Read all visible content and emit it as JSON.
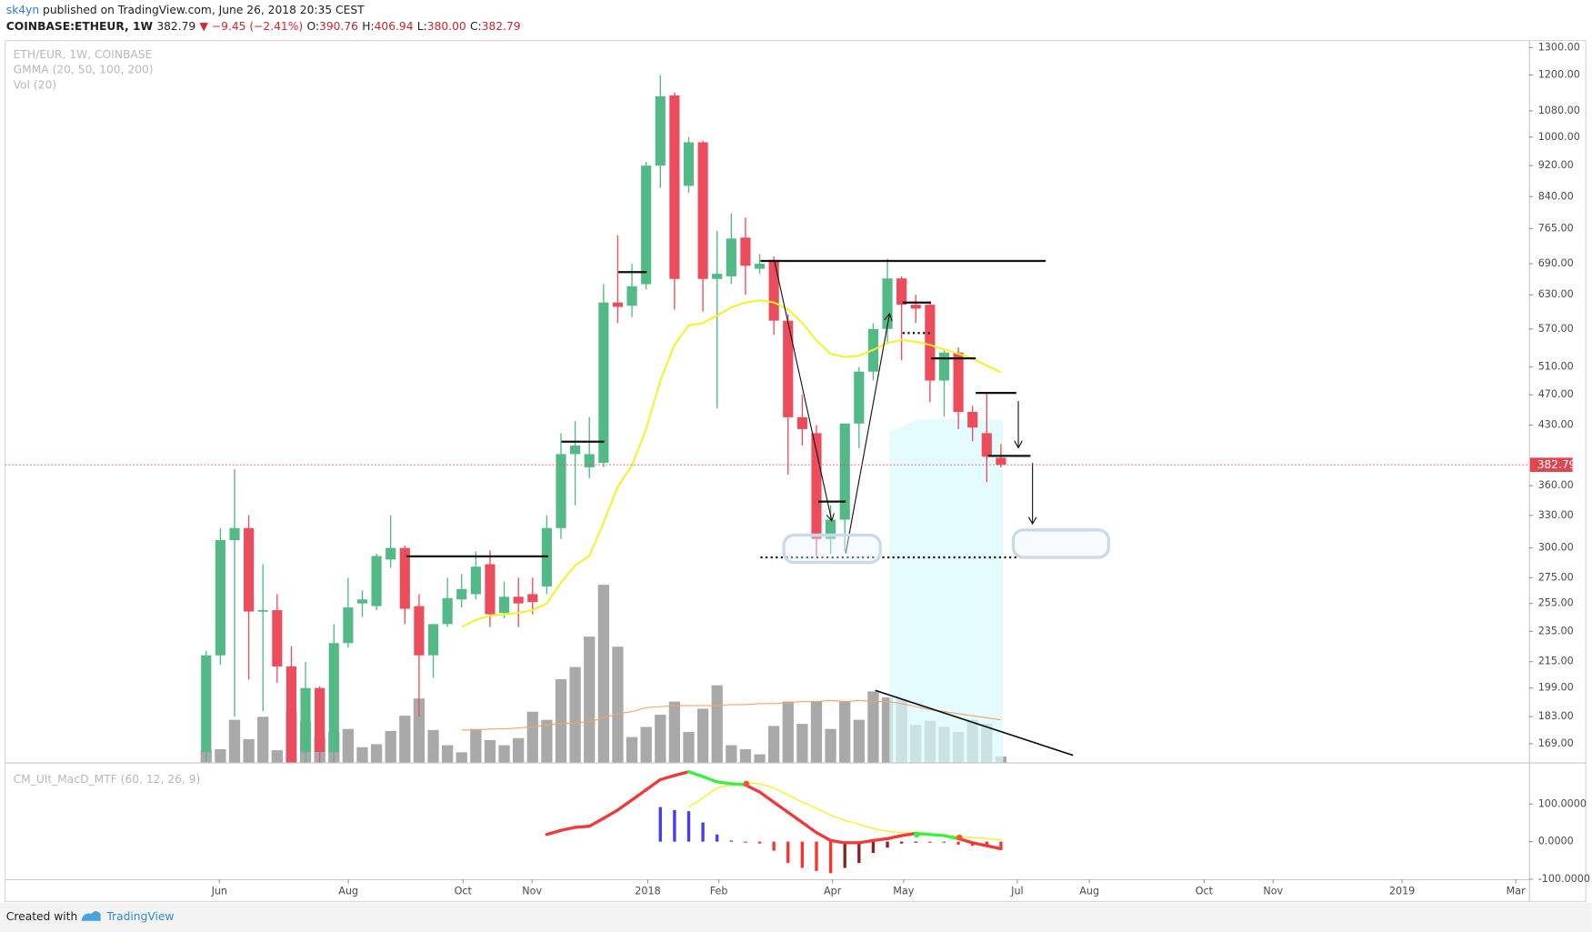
{
  "header": {
    "author": "sk4yn",
    "published": "published on TradingView.com, June 26, 2018 20:35 CEST",
    "symbol": "COINBASE:ETHEUR, 1W",
    "last": "382.79",
    "change": "▼ −9.45 (−2.41%)",
    "ohlc_labels": [
      "O:",
      "H:",
      "L:",
      "C:"
    ],
    "ohlc_values": [
      "390.76",
      "406.94",
      "380.00",
      "382.79"
    ]
  },
  "footer": {
    "created": "Created with",
    "brand": "TradingView"
  },
  "chart_data": [
    {
      "type": "candlestick",
      "title": "ETH/EUR, 1W, COINBASE",
      "indicators": [
        "GMMA (20, 50, 100, 200)",
        "Vol (20)"
      ],
      "x_labels": [
        "Jun",
        "Aug",
        "Oct",
        "Nov",
        "2018",
        "Feb",
        "Apr",
        "May",
        "Jul",
        "Aug",
        "Oct",
        "Nov",
        "2019",
        "Mar"
      ],
      "open": [
        165,
        219,
        307,
        318,
        250,
        250,
        212,
        165,
        199,
        165,
        227,
        255,
        253,
        290,
        300,
        253,
        219,
        240,
        258,
        262,
        286,
        248,
        260,
        262,
        268,
        318,
        395,
        380,
        385,
        616,
        610,
        650,
        920,
        1130,
        867,
        985,
        660,
        665,
        745,
        680,
        698,
        584,
        440,
        420,
        308,
        326,
        432,
        503,
        570,
        661,
        612,
        612,
        490,
        532,
        447,
        420,
        390.76
      ],
      "high": [
        222,
        318,
        378,
        330,
        286,
        262,
        225,
        215,
        200,
        240,
        275,
        265,
        295,
        330,
        302,
        262,
        240,
        275,
        278,
        297,
        298,
        272,
        275,
        275,
        330,
        420,
        435,
        440,
        650,
        750,
        690,
        930,
        1200,
        1140,
        1000,
        990,
        760,
        800,
        790,
        710,
        705,
        595,
        470,
        430,
        340,
        432,
        510,
        580,
        700,
        665,
        630,
        615,
        535,
        540,
        455,
        473,
        406.94
      ],
      "low": [
        155,
        213,
        183,
        204,
        186,
        202,
        155,
        155,
        155,
        155,
        224,
        245,
        250,
        283,
        240,
        183,
        205,
        238,
        252,
        258,
        238,
        244,
        238,
        247,
        262,
        308,
        340,
        368,
        380,
        580,
        590,
        640,
        862,
        603,
        850,
        600,
        452,
        650,
        630,
        670,
        560,
        372,
        405,
        293,
        295,
        297,
        402,
        490,
        545,
        520,
        580,
        460,
        441,
        425,
        410,
        364,
        380
      ],
      "close": [
        219,
        307,
        318,
        249,
        250,
        212,
        160,
        199,
        165,
        227,
        252,
        258,
        293,
        300,
        251,
        219,
        240,
        259,
        266,
        284,
        247,
        260,
        255,
        256,
        318,
        395,
        405,
        395,
        616,
        608,
        646,
        920,
        1127,
        660,
        985,
        660,
        670,
        743,
        686,
        690,
        584,
        440,
        425,
        308,
        326,
        432,
        503,
        570,
        661,
        612,
        605,
        490,
        532,
        447,
        427,
        392,
        382.79
      ],
      "volume": [
        12,
        13,
        42,
        23,
        45,
        12,
        50,
        40,
        25,
        30,
        33,
        15,
        18,
        31,
        46,
        63,
        32,
        17,
        10,
        33,
        22,
        17,
        24,
        50,
        42,
        82,
        94,
        124,
        175,
        114,
        25,
        35,
        47,
        60,
        30,
        53,
        76,
        17,
        13,
        8,
        36,
        60,
        38,
        60,
        33,
        60,
        42,
        70,
        64,
        62,
        37,
        41,
        35,
        30,
        42,
        38,
        6
      ],
      "volume_ma": [
        null,
        null,
        null,
        null,
        null,
        null,
        null,
        null,
        null,
        null,
        null,
        null,
        null,
        null,
        null,
        null,
        null,
        null,
        32,
        32,
        33,
        33,
        34,
        35,
        37,
        38,
        39,
        40,
        44,
        48,
        50,
        54,
        55,
        56,
        56,
        56,
        56,
        57,
        57,
        58,
        58,
        59,
        60,
        60,
        61,
        60,
        61,
        60,
        60,
        58,
        55,
        52,
        50,
        48,
        46,
        44,
        42
      ],
      "ma_values": [
        null,
        null,
        null,
        null,
        null,
        null,
        null,
        null,
        null,
        null,
        null,
        null,
        null,
        null,
        null,
        null,
        null,
        null,
        238,
        243,
        246,
        247,
        248,
        250,
        255,
        271,
        285,
        293,
        323,
        359,
        382,
        425,
        490,
        544,
        576,
        580,
        593,
        607,
        616,
        620,
        616,
        604,
        580,
        551,
        530,
        525,
        527,
        536,
        547,
        552,
        549,
        544,
        537,
        530,
        523,
        512,
        502
      ],
      "up_color": "#53b987",
      "down_color": "#eb4d5c",
      "volume_color": "#a9a9a9",
      "volume_ma_color": "#f5a26a",
      "ma_color": "#f4f127",
      "last_price_color": "#e0464f",
      "log_scale": true,
      "ylim": [
        160,
        1327
      ],
      "yticks": [
        {
          "value": 1300,
          "label": "1300.00"
        },
        {
          "value": 1200,
          "label": "1200.00"
        },
        {
          "value": 1080,
          "label": "1080.00"
        },
        {
          "value": 1000,
          "label": "1000.00"
        },
        {
          "value": 920,
          "label": "920.00"
        },
        {
          "value": 840,
          "label": "840.00"
        },
        {
          "value": 765,
          "label": "765.00"
        },
        {
          "value": 690,
          "label": "690.00"
        },
        {
          "value": 630,
          "label": "630.00"
        },
        {
          "value": 570,
          "label": "570.00"
        },
        {
          "value": 510,
          "label": "510.00"
        },
        {
          "value": 470,
          "label": "470.00"
        },
        {
          "value": 430,
          "label": "430.00"
        },
        {
          "value": 360,
          "label": "360.00"
        },
        {
          "value": 330,
          "label": "330.00"
        },
        {
          "value": 300,
          "label": "300.00"
        },
        {
          "value": 275,
          "label": "275.00"
        },
        {
          "value": 255,
          "label": "255.00"
        },
        {
          "value": 235,
          "label": "235.00"
        },
        {
          "value": 215,
          "label": "215.00"
        },
        {
          "value": 199,
          "label": "199.00"
        },
        {
          "value": 183,
          "label": "183.00"
        },
        {
          "value": 169,
          "label": "169.00"
        }
      ],
      "grid": false
    },
    {
      "type": "macd",
      "title": "CM_Ult_MacD_MTF (60, 12, 26, 9)",
      "macd": [
        null,
        null,
        null,
        null,
        null,
        null,
        null,
        null,
        null,
        null,
        null,
        null,
        null,
        null,
        null,
        null,
        null,
        null,
        null,
        null,
        null,
        null,
        null,
        null,
        19,
        30,
        38,
        41,
        62,
        84,
        111,
        138,
        165,
        176,
        186,
        173,
        159,
        154,
        151,
        132,
        105,
        78,
        51,
        24,
        3,
        -3,
        -3,
        3,
        8,
        16,
        22,
        19,
        16,
        8,
        -3,
        -11,
        -19
      ],
      "signal": [
        null,
        null,
        null,
        null,
        null,
        null,
        null,
        null,
        null,
        null,
        null,
        null,
        null,
        null,
        null,
        null,
        null,
        null,
        null,
        null,
        null,
        null,
        null,
        null,
        null,
        null,
        null,
        null,
        null,
        null,
        null,
        null,
        null,
        null,
        92,
        116,
        143,
        151,
        157,
        154,
        143,
        124,
        105,
        89,
        70,
        57,
        46,
        35,
        27,
        24,
        22,
        19,
        16,
        14,
        11,
        8,
        5
      ],
      "histogram": [
        null,
        null,
        null,
        null,
        null,
        null,
        null,
        null,
        null,
        null,
        null,
        null,
        null,
        null,
        null,
        null,
        null,
        null,
        null,
        null,
        null,
        null,
        null,
        null,
        null,
        null,
        null,
        null,
        null,
        null,
        null,
        null,
        92,
        84,
        81,
        51,
        19,
        3,
        -3,
        -5,
        -24,
        -57,
        -70,
        -78,
        -84,
        -70,
        -57,
        -30,
        -16,
        -5,
        -3,
        -3,
        -3,
        -8,
        -11,
        -14,
        -19
      ],
      "macd_up_color": "#3ef03e",
      "macd_down_color": "#f03a3a",
      "signal_color": "#f2f230",
      "hist_up_color": "#4040f0",
      "hist_down_color": "#ff3030",
      "hist_recover_color": "#8b2222",
      "ylim": [
        -100,
        208
      ],
      "yticks": [
        {
          "value": 100,
          "label": "100.0000"
        },
        {
          "value": 0,
          "label": "0.0000"
        },
        {
          "value": -100,
          "label": "-100.0000"
        }
      ]
    }
  ]
}
